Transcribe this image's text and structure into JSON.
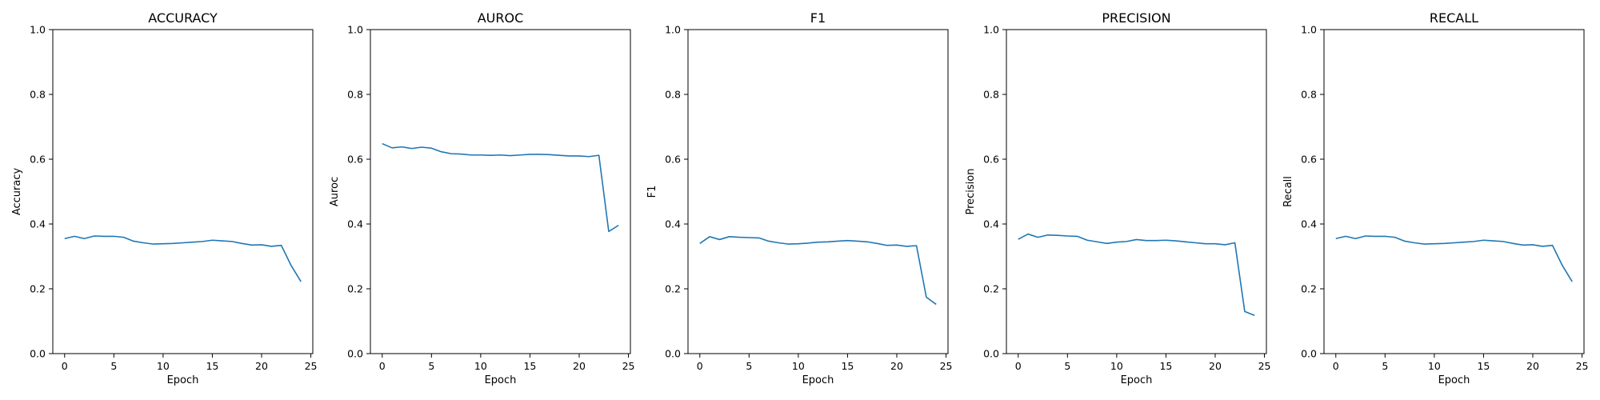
{
  "chart_data": [
    {
      "type": "line",
      "title": "ACCURACY",
      "xlabel": "Epoch",
      "ylabel": "Accuracy",
      "xlim": [
        -1.2,
        25.2
      ],
      "ylim": [
        0,
        1
      ],
      "xticks": [
        0,
        5,
        10,
        15,
        20,
        25
      ],
      "yticks": [
        0.0,
        0.2,
        0.4,
        0.6,
        0.8,
        1.0
      ],
      "grid": false,
      "line_color": "#1f77b4",
      "x": [
        0,
        1,
        2,
        3,
        4,
        5,
        6,
        7,
        8,
        9,
        10,
        11,
        12,
        13,
        14,
        15,
        16,
        17,
        18,
        19,
        20,
        21,
        22,
        23,
        24
      ],
      "values": [
        0.355,
        0.362,
        0.355,
        0.363,
        0.362,
        0.362,
        0.359,
        0.347,
        0.342,
        0.338,
        0.339,
        0.34,
        0.342,
        0.344,
        0.346,
        0.35,
        0.348,
        0.346,
        0.34,
        0.335,
        0.336,
        0.331,
        0.334,
        0.272,
        0.222
      ]
    },
    {
      "type": "line",
      "title": "AUROC",
      "xlabel": "Epoch",
      "ylabel": "Auroc",
      "xlim": [
        -1.2,
        25.2
      ],
      "ylim": [
        0,
        1
      ],
      "xticks": [
        0,
        5,
        10,
        15,
        20,
        25
      ],
      "yticks": [
        0.0,
        0.2,
        0.4,
        0.6,
        0.8,
        1.0
      ],
      "grid": false,
      "line_color": "#1f77b4",
      "x": [
        0,
        1,
        2,
        3,
        4,
        5,
        6,
        7,
        8,
        9,
        10,
        11,
        12,
        13,
        14,
        15,
        16,
        17,
        18,
        19,
        20,
        21,
        22,
        23,
        24
      ],
      "values": [
        0.648,
        0.635,
        0.638,
        0.633,
        0.637,
        0.634,
        0.623,
        0.617,
        0.616,
        0.613,
        0.613,
        0.612,
        0.613,
        0.611,
        0.613,
        0.615,
        0.615,
        0.614,
        0.612,
        0.61,
        0.61,
        0.608,
        0.612,
        0.377,
        0.396
      ]
    },
    {
      "type": "line",
      "title": "F1",
      "xlabel": "Epoch",
      "ylabel": "F1",
      "xlim": [
        -1.2,
        25.2
      ],
      "ylim": [
        0,
        1
      ],
      "xticks": [
        0,
        5,
        10,
        15,
        20,
        25
      ],
      "yticks": [
        0.0,
        0.2,
        0.4,
        0.6,
        0.8,
        1.0
      ],
      "grid": false,
      "line_color": "#1f77b4",
      "x": [
        0,
        1,
        2,
        3,
        4,
        5,
        6,
        7,
        8,
        9,
        10,
        11,
        12,
        13,
        14,
        15,
        16,
        17,
        18,
        19,
        20,
        21,
        22,
        23,
        24
      ],
      "values": [
        0.34,
        0.361,
        0.352,
        0.361,
        0.359,
        0.358,
        0.357,
        0.347,
        0.342,
        0.338,
        0.339,
        0.341,
        0.344,
        0.345,
        0.347,
        0.349,
        0.347,
        0.345,
        0.34,
        0.334,
        0.335,
        0.331,
        0.333,
        0.174,
        0.152
      ]
    },
    {
      "type": "line",
      "title": "PRECISION",
      "xlabel": "Epoch",
      "ylabel": "Precision",
      "xlim": [
        -1.2,
        25.2
      ],
      "ylim": [
        0,
        1
      ],
      "xticks": [
        0,
        5,
        10,
        15,
        20,
        25
      ],
      "yticks": [
        0.0,
        0.2,
        0.4,
        0.6,
        0.8,
        1.0
      ],
      "grid": false,
      "line_color": "#1f77b4",
      "x": [
        0,
        1,
        2,
        3,
        4,
        5,
        6,
        7,
        8,
        9,
        10,
        11,
        12,
        13,
        14,
        15,
        16,
        17,
        18,
        19,
        20,
        21,
        22,
        23,
        24
      ],
      "values": [
        0.353,
        0.369,
        0.359,
        0.366,
        0.365,
        0.363,
        0.362,
        0.35,
        0.345,
        0.34,
        0.344,
        0.346,
        0.352,
        0.349,
        0.349,
        0.35,
        0.348,
        0.345,
        0.342,
        0.339,
        0.339,
        0.336,
        0.342,
        0.13,
        0.118
      ]
    },
    {
      "type": "line",
      "title": "RECALL",
      "xlabel": "Epoch",
      "ylabel": "Recall",
      "xlim": [
        -1.2,
        25.2
      ],
      "ylim": [
        0,
        1
      ],
      "xticks": [
        0,
        5,
        10,
        15,
        20,
        25
      ],
      "yticks": [
        0.0,
        0.2,
        0.4,
        0.6,
        0.8,
        1.0
      ],
      "grid": false,
      "line_color": "#1f77b4",
      "x": [
        0,
        1,
        2,
        3,
        4,
        5,
        6,
        7,
        8,
        9,
        10,
        11,
        12,
        13,
        14,
        15,
        16,
        17,
        18,
        19,
        20,
        21,
        22,
        23,
        24
      ],
      "values": [
        0.355,
        0.362,
        0.355,
        0.363,
        0.362,
        0.362,
        0.359,
        0.347,
        0.342,
        0.338,
        0.339,
        0.34,
        0.342,
        0.344,
        0.346,
        0.35,
        0.348,
        0.346,
        0.34,
        0.335,
        0.336,
        0.331,
        0.334,
        0.272,
        0.222
      ]
    }
  ]
}
